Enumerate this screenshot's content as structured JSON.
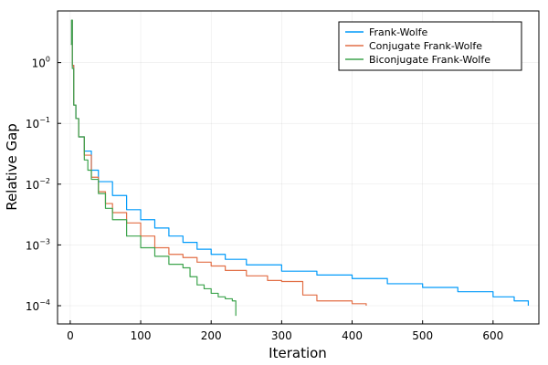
{
  "chart_data": {
    "type": "line",
    "title": "",
    "xlabel": "Iteration",
    "ylabel": "Relative Gap",
    "xlim": [
      -18,
      665
    ],
    "ylim_log10": [
      -4.3,
      0.85
    ],
    "y_scale": "log10",
    "x_ticks": [
      0,
      100,
      200,
      300,
      400,
      500,
      600
    ],
    "y_ticks": [
      {
        "value": 1,
        "base": "10",
        "exp": "0"
      },
      {
        "value": 0.1,
        "base": "10",
        "exp": "−1"
      },
      {
        "value": 0.01,
        "base": "10",
        "exp": "−2"
      },
      {
        "value": 0.001,
        "base": "10",
        "exp": "−3"
      },
      {
        "value": 0.0001,
        "base": "10",
        "exp": "−4"
      }
    ],
    "grid": true,
    "legend_position": "top-right",
    "series": [
      {
        "name": "Frank-Wolfe",
        "color": "#009AFA",
        "x": [
          1,
          2,
          3,
          5,
          8,
          12,
          20,
          30,
          40,
          60,
          80,
          100,
          120,
          140,
          160,
          180,
          200,
          220,
          250,
          300,
          350,
          400,
          450,
          500,
          550,
          600,
          630,
          650
        ],
        "y": [
          2.0,
          5.0,
          0.9,
          0.2,
          0.12,
          0.06,
          0.035,
          0.017,
          0.011,
          0.0065,
          0.0038,
          0.0026,
          0.0019,
          0.0014,
          0.0011,
          0.00085,
          0.0007,
          0.00058,
          0.00047,
          0.00037,
          0.00032,
          0.00028,
          0.00023,
          0.0002,
          0.00017,
          0.00014,
          0.00012,
          0.0001
        ]
      },
      {
        "name": "Conjugate Frank-Wolfe",
        "color": "#E26F46",
        "x": [
          1,
          2,
          3,
          5,
          8,
          12,
          20,
          30,
          40,
          50,
          60,
          80,
          100,
          120,
          140,
          160,
          180,
          200,
          220,
          250,
          280,
          300,
          330,
          350,
          400,
          420
        ],
        "y": [
          2.0,
          5.0,
          0.9,
          0.2,
          0.12,
          0.06,
          0.03,
          0.013,
          0.0075,
          0.0048,
          0.0034,
          0.0023,
          0.0014,
          0.0009,
          0.0007,
          0.00062,
          0.00052,
          0.00045,
          0.00038,
          0.00031,
          0.00026,
          0.00025,
          0.00015,
          0.00012,
          0.000108,
          0.0001
        ]
      },
      {
        "name": "Biconjugate Frank-Wolfe",
        "color": "#3DA44D",
        "x": [
          1,
          2,
          3,
          5,
          8,
          12,
          20,
          25,
          30,
          40,
          50,
          60,
          80,
          100,
          120,
          140,
          160,
          170,
          180,
          190,
          200,
          210,
          220,
          230,
          235
        ],
        "y": [
          2.0,
          5.0,
          0.8,
          0.2,
          0.12,
          0.06,
          0.025,
          0.017,
          0.012,
          0.007,
          0.004,
          0.0026,
          0.0014,
          0.0009,
          0.00065,
          0.00048,
          0.00042,
          0.0003,
          0.00022,
          0.00019,
          0.00016,
          0.00014,
          0.00013,
          0.00012,
          6.8e-05
        ]
      }
    ]
  }
}
